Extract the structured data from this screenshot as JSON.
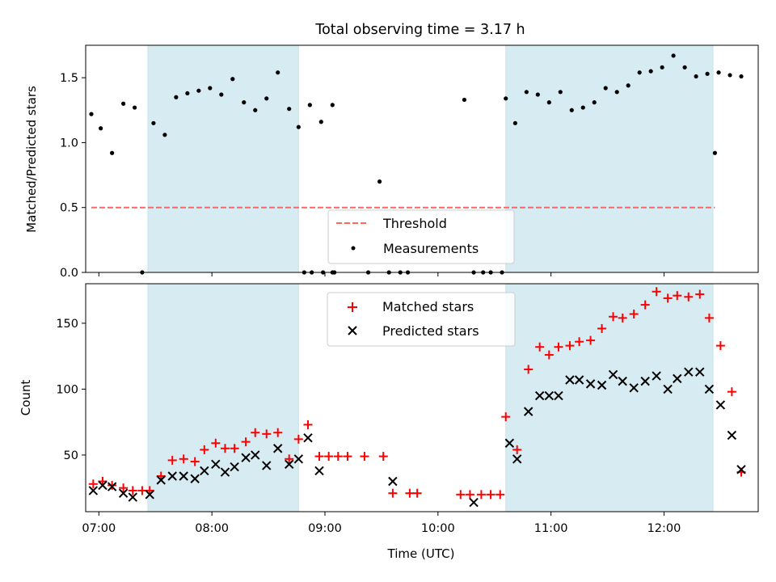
{
  "figure": {
    "title": "Total observing time = 3.17 h"
  },
  "colors": {
    "shade": "#add8e6",
    "threshold": "#ff6666",
    "measurement": "#000000",
    "matched": "#ff0000",
    "predicted": "#000000",
    "axes": "#000000"
  },
  "chart_data": [
    {
      "type": "scatter",
      "name": "ratio-panel",
      "ylabel": "Matched/Predicted stars",
      "xlabel": "",
      "ylim": [
        0,
        1.75
      ],
      "xlim": [
        "06:53",
        "12:50"
      ],
      "yticks": [
        0.0,
        0.5,
        1.0,
        1.5
      ],
      "ytick_labels": [
        "0.0",
        "0.5",
        "1.0",
        "1.5"
      ],
      "grid": false,
      "legend_position": "lower-center",
      "shaded_intervals": [
        [
          "07:26",
          "08:46"
        ],
        [
          "10:36",
          "12:26"
        ]
      ],
      "threshold": {
        "label": "Threshold",
        "y": 0.5,
        "x_range": [
          "06:56",
          "12:27"
        ],
        "style": "dashed"
      },
      "series": [
        {
          "name": "Measurements",
          "marker": "dot",
          "points": [
            [
              "06:56",
              1.22
            ],
            [
              "07:01",
              1.11
            ],
            [
              "07:07",
              0.92
            ],
            [
              "07:13",
              1.3
            ],
            [
              "07:19",
              1.27
            ],
            [
              "07:23",
              0.0
            ],
            [
              "07:29",
              1.15
            ],
            [
              "07:35",
              1.06
            ],
            [
              "07:41",
              1.35
            ],
            [
              "07:47",
              1.38
            ],
            [
              "07:53",
              1.4
            ],
            [
              "07:59",
              1.42
            ],
            [
              "08:05",
              1.37
            ],
            [
              "08:11",
              1.49
            ],
            [
              "08:17",
              1.31
            ],
            [
              "08:23",
              1.25
            ],
            [
              "08:29",
              1.34
            ],
            [
              "08:35",
              1.54
            ],
            [
              "08:41",
              1.26
            ],
            [
              "08:46",
              1.12
            ],
            [
              "08:52",
              1.29
            ],
            [
              "08:58",
              1.16
            ],
            [
              "09:04",
              1.29
            ],
            [
              "08:49",
              0.0
            ],
            [
              "08:53",
              0.0
            ],
            [
              "08:59",
              0.0
            ],
            [
              "09:04",
              0.0
            ],
            [
              "09:05",
              0.0
            ],
            [
              "09:23",
              0.0
            ],
            [
              "09:29",
              0.7
            ],
            [
              "09:34",
              0.0
            ],
            [
              "09:40",
              0.0
            ],
            [
              "09:44",
              0.0
            ],
            [
              "10:14",
              1.33
            ],
            [
              "10:19",
              0.0
            ],
            [
              "10:24",
              0.0
            ],
            [
              "10:28",
              0.0
            ],
            [
              "10:34",
              0.0
            ],
            [
              "10:36",
              1.34
            ],
            [
              "10:41",
              1.15
            ],
            [
              "10:47",
              1.39
            ],
            [
              "10:53",
              1.37
            ],
            [
              "10:59",
              1.31
            ],
            [
              "11:05",
              1.39
            ],
            [
              "11:11",
              1.25
            ],
            [
              "11:17",
              1.27
            ],
            [
              "11:23",
              1.31
            ],
            [
              "11:29",
              1.42
            ],
            [
              "11:35",
              1.39
            ],
            [
              "11:41",
              1.44
            ],
            [
              "11:47",
              1.54
            ],
            [
              "11:53",
              1.55
            ],
            [
              "11:59",
              1.58
            ],
            [
              "12:05",
              1.67
            ],
            [
              "12:11",
              1.58
            ],
            [
              "12:17",
              1.51
            ],
            [
              "12:23",
              1.53
            ],
            [
              "12:29",
              1.54
            ],
            [
              "12:35",
              1.52
            ],
            [
              "12:41",
              1.51
            ],
            [
              "12:27",
              0.92
            ]
          ]
        }
      ],
      "legend": [
        "Threshold",
        "Measurements"
      ]
    },
    {
      "type": "scatter",
      "name": "count-panel",
      "ylabel": "Count",
      "xlabel": "Time (UTC)",
      "ylim": [
        7,
        180
      ],
      "xlim": [
        "06:53",
        "12:50"
      ],
      "yticks": [
        50,
        100,
        150
      ],
      "ytick_labels": [
        "50",
        "100",
        "150"
      ],
      "xticks": [
        "07:00",
        "08:00",
        "09:00",
        "10:00",
        "11:00",
        "12:00"
      ],
      "grid": false,
      "legend_position": "top-center",
      "shaded_intervals": [
        [
          "07:26",
          "08:46"
        ],
        [
          "10:36",
          "12:26"
        ]
      ],
      "series": [
        {
          "name": "Matched stars",
          "marker": "plus",
          "points": [
            [
              "06:57",
              28
            ],
            [
              "07:02",
              30
            ],
            [
              "07:07",
              27
            ],
            [
              "07:13",
              25
            ],
            [
              "07:18",
              23
            ],
            [
              "07:23",
              23
            ],
            [
              "07:27",
              23
            ],
            [
              "07:33",
              34
            ],
            [
              "07:39",
              46
            ],
            [
              "07:45",
              47
            ],
            [
              "07:51",
              45
            ],
            [
              "07:56",
              54
            ],
            [
              "08:02",
              59
            ],
            [
              "08:07",
              55
            ],
            [
              "08:12",
              55
            ],
            [
              "08:18",
              60
            ],
            [
              "08:23",
              67
            ],
            [
              "08:29",
              66
            ],
            [
              "08:35",
              67
            ],
            [
              "08:41",
              47
            ],
            [
              "08:46",
              62
            ],
            [
              "08:51",
              73
            ],
            [
              "08:57",
              49
            ],
            [
              "09:02",
              49
            ],
            [
              "09:07",
              49
            ],
            [
              "09:12",
              49
            ],
            [
              "09:21",
              49
            ],
            [
              "09:31",
              49
            ],
            [
              "09:36",
              21
            ],
            [
              "09:45",
              21
            ],
            [
              "09:49",
              21
            ],
            [
              "10:12",
              20
            ],
            [
              "10:17",
              20
            ],
            [
              "10:23",
              20
            ],
            [
              "10:28",
              20
            ],
            [
              "10:33",
              20
            ],
            [
              "10:36",
              79
            ],
            [
              "10:42",
              54
            ],
            [
              "10:48",
              115
            ],
            [
              "10:54",
              132
            ],
            [
              "10:59",
              126
            ],
            [
              "11:04",
              132
            ],
            [
              "11:10",
              133
            ],
            [
              "11:15",
              136
            ],
            [
              "11:21",
              137
            ],
            [
              "11:27",
              146
            ],
            [
              "11:33",
              155
            ],
            [
              "11:38",
              154
            ],
            [
              "11:44",
              157
            ],
            [
              "11:50",
              164
            ],
            [
              "11:56",
              174
            ],
            [
              "12:02",
              169
            ],
            [
              "12:07",
              171
            ],
            [
              "12:13",
              170
            ],
            [
              "12:19",
              172
            ],
            [
              "12:24",
              154
            ],
            [
              "12:30",
              133
            ],
            [
              "12:36",
              98
            ],
            [
              "12:41",
              37
            ]
          ]
        },
        {
          "name": "Predicted stars",
          "marker": "x",
          "points": [
            [
              "06:57",
              23
            ],
            [
              "07:02",
              27
            ],
            [
              "07:07",
              26
            ],
            [
              "07:13",
              21
            ],
            [
              "07:18",
              18
            ],
            [
              "07:27",
              20
            ],
            [
              "07:33",
              31
            ],
            [
              "07:39",
              34
            ],
            [
              "07:45",
              34
            ],
            [
              "07:51",
              32
            ],
            [
              "07:56",
              38
            ],
            [
              "08:02",
              43
            ],
            [
              "08:07",
              37
            ],
            [
              "08:12",
              41
            ],
            [
              "08:18",
              48
            ],
            [
              "08:23",
              50
            ],
            [
              "08:29",
              42
            ],
            [
              "08:35",
              55
            ],
            [
              "08:41",
              43
            ],
            [
              "08:46",
              47
            ],
            [
              "08:51",
              63
            ],
            [
              "08:57",
              38
            ],
            [
              "09:36",
              30
            ],
            [
              "10:19",
              14
            ],
            [
              "10:38",
              59
            ],
            [
              "10:42",
              47
            ],
            [
              "10:48",
              83
            ],
            [
              "10:54",
              95
            ],
            [
              "10:59",
              95
            ],
            [
              "11:04",
              95
            ],
            [
              "11:10",
              107
            ],
            [
              "11:15",
              107
            ],
            [
              "11:21",
              104
            ],
            [
              "11:27",
              103
            ],
            [
              "11:33",
              111
            ],
            [
              "11:38",
              106
            ],
            [
              "11:44",
              101
            ],
            [
              "11:50",
              106
            ],
            [
              "11:56",
              110
            ],
            [
              "12:02",
              100
            ],
            [
              "12:07",
              108
            ],
            [
              "12:13",
              113
            ],
            [
              "12:19",
              113
            ],
            [
              "12:24",
              100
            ],
            [
              "12:30",
              88
            ],
            [
              "12:36",
              65
            ],
            [
              "12:41",
              39
            ]
          ]
        }
      ],
      "legend": [
        "Matched stars",
        "Predicted stars"
      ]
    }
  ]
}
